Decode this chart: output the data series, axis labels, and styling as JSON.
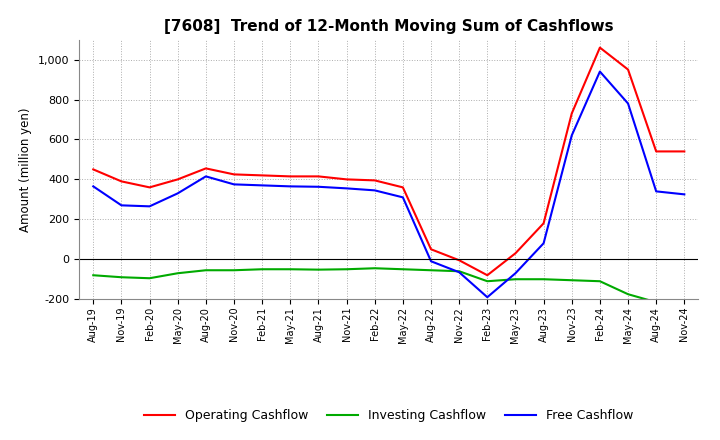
{
  "title": "[7608]  Trend of 12-Month Moving Sum of Cashflows",
  "ylabel": "Amount (million yen)",
  "background_color": "#ffffff",
  "plot_bg_color": "#ffffff",
  "grid_color": "#999999",
  "title_fontsize": 11,
  "x_labels": [
    "Aug-19",
    "Nov-19",
    "Feb-20",
    "May-20",
    "Aug-20",
    "Nov-20",
    "Feb-21",
    "May-21",
    "Aug-21",
    "Nov-21",
    "Feb-22",
    "May-22",
    "Aug-22",
    "Nov-22",
    "Feb-23",
    "May-23",
    "Aug-23",
    "Nov-23",
    "Feb-24",
    "May-24",
    "Aug-24",
    "Nov-24"
  ],
  "operating": [
    450,
    390,
    360,
    400,
    455,
    425,
    420,
    415,
    415,
    400,
    395,
    360,
    50,
    -5,
    -80,
    30,
    180,
    730,
    1060,
    950,
    540,
    540
  ],
  "investing": [
    -80,
    -90,
    -95,
    -70,
    -55,
    -55,
    -50,
    -50,
    -52,
    -50,
    -45,
    -50,
    -55,
    -60,
    -110,
    -100,
    -100,
    -105,
    -110,
    -175,
    -215,
    -215
  ],
  "free": [
    365,
    270,
    265,
    330,
    415,
    375,
    370,
    365,
    363,
    355,
    345,
    310,
    -10,
    -65,
    -190,
    -70,
    80,
    620,
    940,
    780,
    340,
    325
  ],
  "ylim": [
    -200,
    1100
  ],
  "yticks": [
    -200,
    0,
    200,
    400,
    600,
    800,
    1000
  ],
  "line_colors": {
    "operating": "#ff0000",
    "investing": "#00aa00",
    "free": "#0000ff"
  },
  "legend_labels": [
    "Operating Cashflow",
    "Investing Cashflow",
    "Free Cashflow"
  ]
}
